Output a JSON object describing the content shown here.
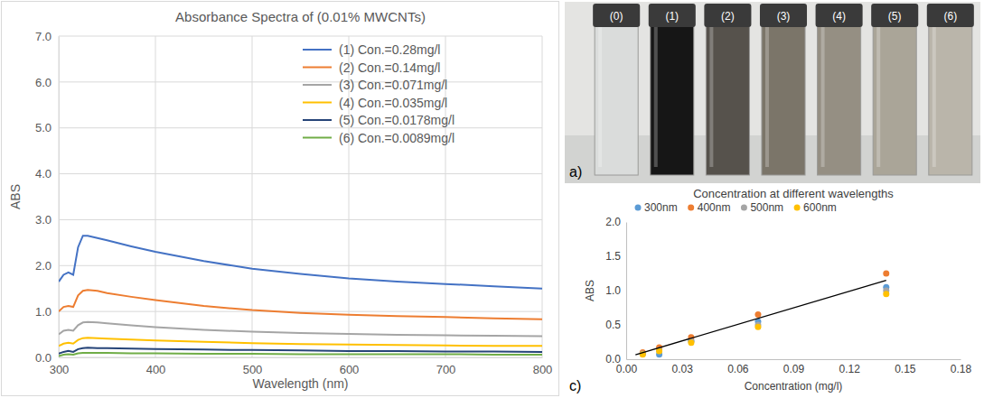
{
  "chart_data": [
    {
      "type": "line",
      "title": "Absorbance Spectra of (0.01% MWCNTs)",
      "xlabel": "Wavelength (nm)",
      "ylabel": "ABS",
      "x": [
        300,
        305,
        310,
        315,
        320,
        325,
        330,
        340,
        350,
        375,
        400,
        450,
        500,
        550,
        600,
        650,
        700,
        750,
        800
      ],
      "series": [
        {
          "name": "(1) Con.=0.28mg/l",
          "color": "#4472c4",
          "values": [
            1.65,
            1.8,
            1.85,
            1.8,
            2.4,
            2.65,
            2.65,
            2.6,
            2.55,
            2.42,
            2.3,
            2.1,
            1.93,
            1.82,
            1.72,
            1.65,
            1.6,
            1.55,
            1.5
          ]
        },
        {
          "name": "(2) Con.=0.14mg/l",
          "color": "#ed7d31",
          "values": [
            1.0,
            1.1,
            1.12,
            1.1,
            1.35,
            1.45,
            1.47,
            1.45,
            1.4,
            1.32,
            1.25,
            1.12,
            1.03,
            0.97,
            0.93,
            0.9,
            0.88,
            0.85,
            0.83
          ]
        },
        {
          "name": "(3) Con.=0.071mg/l",
          "color": "#a5a5a5",
          "values": [
            0.5,
            0.58,
            0.6,
            0.58,
            0.7,
            0.76,
            0.77,
            0.76,
            0.74,
            0.7,
            0.66,
            0.6,
            0.56,
            0.53,
            0.51,
            0.49,
            0.48,
            0.47,
            0.46
          ]
        },
        {
          "name": "(4) Con.=0.035mg/l",
          "color": "#ffc000",
          "values": [
            0.25,
            0.3,
            0.32,
            0.3,
            0.38,
            0.42,
            0.43,
            0.42,
            0.41,
            0.39,
            0.37,
            0.34,
            0.31,
            0.29,
            0.28,
            0.27,
            0.26,
            0.25,
            0.25
          ]
        },
        {
          "name": "(5) Con.=0.0178mg/l",
          "color": "#264478",
          "values": [
            0.08,
            0.12,
            0.14,
            0.12,
            0.18,
            0.2,
            0.21,
            0.2,
            0.2,
            0.19,
            0.18,
            0.17,
            0.16,
            0.15,
            0.14,
            0.14,
            0.13,
            0.13,
            0.12
          ]
        },
        {
          "name": "(6) Con.=0.0089mg/l",
          "color": "#70ad47",
          "values": [
            0.03,
            0.06,
            0.07,
            0.06,
            0.09,
            0.1,
            0.1,
            0.1,
            0.1,
            0.09,
            0.09,
            0.08,
            0.08,
            0.07,
            0.07,
            0.07,
            0.07,
            0.06,
            0.06
          ]
        }
      ],
      "xlim": [
        300,
        800
      ],
      "xticks": [
        300,
        400,
        500,
        600,
        700,
        800
      ],
      "ylim": [
        0,
        7
      ],
      "yticks": [
        {
          "value": 0,
          "label": "0.0"
        },
        {
          "value": 1,
          "label": "1.0"
        },
        {
          "value": 2,
          "label": "2.0"
        },
        {
          "value": 3,
          "label": "3.0"
        },
        {
          "value": 4,
          "label": "4.0"
        },
        {
          "value": 5,
          "label": "5.0"
        },
        {
          "value": 6,
          "label": "6.0"
        },
        {
          "value": 7,
          "label": "7.0"
        }
      ],
      "grid": true,
      "legend": "top-right"
    },
    {
      "type": "scatter",
      "title": "Concentration at different wavelengths",
      "xlabel": "Concentration (mg/l)",
      "ylabel": "ABS",
      "panel_label": "c)",
      "x": [
        0.0089,
        0.0178,
        0.035,
        0.071,
        0.14
      ],
      "series": [
        {
          "name": "300nm",
          "color": "#5b9bd5",
          "marker": "circle",
          "values": [
            0.08,
            0.07,
            0.27,
            0.55,
            1.05
          ]
        },
        {
          "name": "400nm",
          "color": "#ed7d31",
          "marker": "circle",
          "values": [
            0.1,
            0.17,
            0.32,
            0.65,
            1.25
          ]
        },
        {
          "name": "500nm",
          "color": "#a5a5a5",
          "marker": "circle",
          "values": [
            0.08,
            0.13,
            0.26,
            0.5,
            1.0
          ]
        },
        {
          "name": "600nm",
          "color": "#ffc000",
          "marker": "circle",
          "values": [
            0.07,
            0.12,
            0.24,
            0.47,
            0.95
          ]
        },
        {
          "type": "line",
          "color": "#000000",
          "x": [
            0.005,
            0.14
          ],
          "values": [
            0.065,
            1.15
          ]
        }
      ],
      "xlim": [
        0,
        0.18
      ],
      "xticks": [
        {
          "value": 0,
          "label": "0.00"
        },
        0.03,
        0.06,
        0.09,
        0.12,
        0.15,
        0.18
      ],
      "ylim": [
        0,
        2
      ],
      "yticks": [
        {
          "value": 0,
          "label": "0.0"
        },
        0.5,
        {
          "value": 1,
          "label": "1.0"
        },
        1.5,
        {
          "value": 2,
          "label": "2.0"
        }
      ],
      "grid": false,
      "legend": "top-left"
    }
  ],
  "photo": {
    "panel_label": "a)",
    "labels": [
      "(0)",
      "(1)",
      "(2)",
      "(3)",
      "(4)",
      "(5)",
      "(6)"
    ]
  }
}
